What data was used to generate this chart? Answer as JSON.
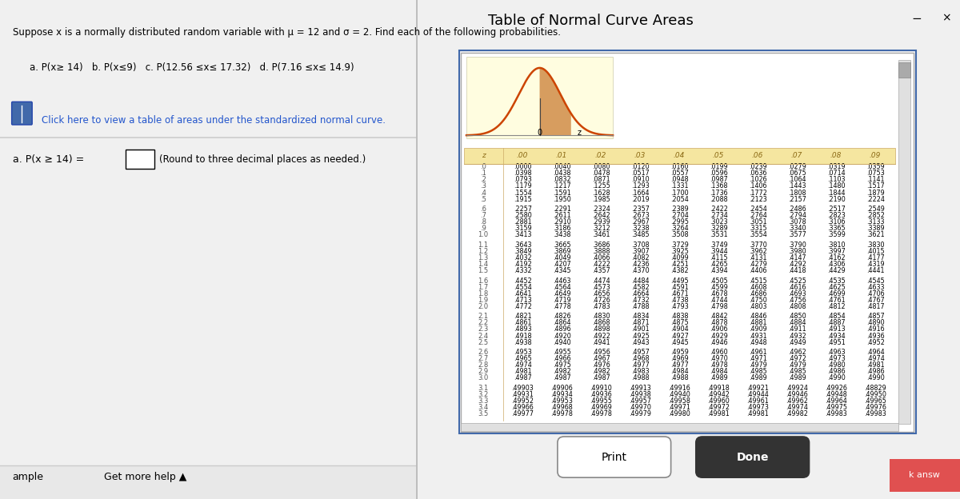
{
  "left_panel": {
    "title_line1": "Suppose x is a normally distributed random variable with μ = 12 and σ = 2. Find each of the following probabilities.",
    "sub_parts": "a. P(x≥ 14)   b. P(x≤9)   c. P(12.56 ≤x≤ 17.32)   d. P(7.16 ≤x≤ 14.9)",
    "click_text": "Click here to view a table of areas under the standardized normal curve.",
    "answer_label": "a. P(x ≥ 14) =",
    "answer_note": "(Round to three decimal places as needed.)",
    "bottom_left": "ample",
    "bottom_right": "Get more help ▲",
    "bg_color": "#ffffff",
    "divider_color": "#cccccc",
    "text_color": "#000000",
    "blue_text_color": "#2255cc",
    "answer_box_color": "#ffffff",
    "answer_box_border": "#000000"
  },
  "right_panel": {
    "title": "Table of Normal Curve Areas",
    "bg_color": "#f0f0f0",
    "panel_bg": "#ffffff",
    "title_color": "#000000",
    "header_bg": "#f5e6a0",
    "header_text_color": "#8b6914",
    "table_bg": "#ffffff",
    "row_text_color": "#000000",
    "close_color": "#000000",
    "curve_color": "#cc4400",
    "print_btn_bg": "#ffffff",
    "done_btn_bg": "#333333",
    "done_btn_text": "#ffffff",
    "print_btn_text": "#000000",
    "column_headers": [
      "z",
      ".00",
      ".01",
      ".02",
      ".03",
      ".04",
      ".05",
      ".06",
      ".07",
      ".08",
      ".09"
    ],
    "z_values": [
      ".0",
      ".1",
      ".2",
      ".3",
      ".4",
      ".5",
      ".6",
      ".7",
      ".8",
      ".9",
      "1.0",
      "1.1",
      "1.2",
      "1.3",
      "1.4",
      "1.5",
      "1.6",
      "1.7",
      "1.8",
      "1.9",
      "2.0",
      "2.1",
      "2.2",
      "2.3",
      "2.4",
      "2.5",
      "2.6",
      "2.7",
      "2.8",
      "2.9",
      "3.0",
      "3.1",
      "3.2",
      "3.3",
      "3.4",
      "3.5"
    ],
    "table_data": [
      [
        ".0000",
        ".0040",
        ".0080",
        ".0120",
        ".0160",
        ".0199",
        ".0239",
        ".0279",
        ".0319",
        ".0359"
      ],
      [
        ".0398",
        ".0438",
        ".0478",
        ".0517",
        ".0557",
        ".0596",
        ".0636",
        ".0675",
        ".0714",
        ".0753"
      ],
      [
        ".0793",
        ".0832",
        ".0871",
        ".0910",
        ".0948",
        ".0987",
        ".1026",
        ".1064",
        ".1103",
        ".1141"
      ],
      [
        ".1179",
        ".1217",
        ".1255",
        ".1293",
        ".1331",
        ".1368",
        ".1406",
        ".1443",
        ".1480",
        ".1517"
      ],
      [
        ".1554",
        ".1591",
        ".1628",
        ".1664",
        ".1700",
        ".1736",
        ".1772",
        ".1808",
        ".1844",
        ".1879"
      ],
      [
        ".1915",
        ".1950",
        ".1985",
        ".2019",
        ".2054",
        ".2088",
        ".2123",
        ".2157",
        ".2190",
        ".2224"
      ],
      [
        ".2257",
        ".2291",
        ".2324",
        ".2357",
        ".2389",
        ".2422",
        ".2454",
        ".2486",
        ".2517",
        ".2549"
      ],
      [
        ".2580",
        ".2611",
        ".2642",
        ".2673",
        ".2704",
        ".2734",
        ".2764",
        ".2794",
        ".2823",
        ".2852"
      ],
      [
        ".2881",
        ".2910",
        ".2939",
        ".2967",
        ".2995",
        ".3023",
        ".3051",
        ".3078",
        ".3106",
        ".3133"
      ],
      [
        ".3159",
        ".3186",
        ".3212",
        ".3238",
        ".3264",
        ".3289",
        ".3315",
        ".3340",
        ".3365",
        ".3389"
      ],
      [
        ".3413",
        ".3438",
        ".3461",
        ".3485",
        ".3508",
        ".3531",
        ".3554",
        ".3577",
        ".3599",
        ".3621"
      ],
      [
        ".3643",
        ".3665",
        ".3686",
        ".3708",
        ".3729",
        ".3749",
        ".3770",
        ".3790",
        ".3810",
        ".3830"
      ],
      [
        ".3849",
        ".3869",
        ".3888",
        ".3907",
        ".3925",
        ".3944",
        ".3962",
        ".3980",
        ".3997",
        ".4015"
      ],
      [
        ".4032",
        ".4049",
        ".4066",
        ".4082",
        ".4099",
        ".4115",
        ".4131",
        ".4147",
        ".4162",
        ".4177"
      ],
      [
        ".4192",
        ".4207",
        ".4222",
        ".4236",
        ".4251",
        ".4265",
        ".4279",
        ".4292",
        ".4306",
        ".4319"
      ],
      [
        ".4332",
        ".4345",
        ".4357",
        ".4370",
        ".4382",
        ".4394",
        ".4406",
        ".4418",
        ".4429",
        ".4441"
      ],
      [
        ".4452",
        ".4463",
        ".4474",
        ".4484",
        ".4495",
        ".4505",
        ".4515",
        ".4525",
        ".4535",
        ".4545"
      ],
      [
        ".4554",
        ".4564",
        ".4573",
        ".4582",
        ".4591",
        ".4599",
        ".4608",
        ".4616",
        ".4625",
        ".4633"
      ],
      [
        ".4641",
        ".4649",
        ".4656",
        ".4664",
        ".4671",
        ".4678",
        ".4686",
        ".4693",
        ".4699",
        ".4706"
      ],
      [
        ".4713",
        ".4719",
        ".4726",
        ".4732",
        ".4738",
        ".4744",
        ".4750",
        ".4756",
        ".4761",
        ".4767"
      ],
      [
        ".4772",
        ".4778",
        ".4783",
        ".4788",
        ".4793",
        ".4798",
        ".4803",
        ".4808",
        ".4812",
        ".4817"
      ],
      [
        ".4821",
        ".4826",
        ".4830",
        ".4834",
        ".4838",
        ".4842",
        ".4846",
        ".4850",
        ".4854",
        ".4857"
      ],
      [
        ".4861",
        ".4864",
        ".4868",
        ".4871",
        ".4875",
        ".4878",
        ".4881",
        ".4884",
        ".4887",
        ".4890"
      ],
      [
        ".4893",
        ".4896",
        ".4898",
        ".4901",
        ".4904",
        ".4906",
        ".4909",
        ".4911",
        ".4913",
        ".4916"
      ],
      [
        ".4918",
        ".4920",
        ".4922",
        ".4925",
        ".4927",
        ".4929",
        ".4931",
        ".4932",
        ".4934",
        ".4936"
      ],
      [
        ".4938",
        ".4940",
        ".4941",
        ".4943",
        ".4945",
        ".4946",
        ".4948",
        ".4949",
        ".4951",
        ".4952"
      ],
      [
        ".4953",
        ".4955",
        ".4956",
        ".4957",
        ".4959",
        ".4960",
        ".4961",
        ".4962",
        ".4963",
        ".4964"
      ],
      [
        ".4965",
        ".4966",
        ".4967",
        ".4968",
        ".4969",
        ".4970",
        ".4971",
        ".4972",
        ".4973",
        ".4974"
      ],
      [
        ".4974",
        ".4975",
        ".4976",
        ".4977",
        ".4977",
        ".4978",
        ".4979",
        ".4979",
        ".4980",
        ".4981"
      ],
      [
        ".4981",
        ".4982",
        ".4982",
        ".4983",
        ".4984",
        ".4984",
        ".4985",
        ".4985",
        ".4986",
        ".4986"
      ],
      [
        ".4987",
        ".4987",
        ".4987",
        ".4988",
        ".4988",
        ".4989",
        ".4989",
        ".4989",
        ".4990",
        ".4990"
      ],
      [
        ".49903",
        ".49906",
        ".49910",
        ".49913",
        ".49916",
        ".49918",
        ".49921",
        ".49924",
        ".49926",
        ".48829"
      ],
      [
        ".49931",
        ".49934",
        ".49936",
        ".49938",
        ".49940",
        ".49942",
        ".49944",
        ".49946",
        ".49948",
        ".49950"
      ],
      [
        ".49952",
        ".49953",
        ".49955",
        ".49957",
        ".49958",
        ".49960",
        ".49961",
        ".49962",
        ".49964",
        ".49965"
      ],
      [
        ".49966",
        ".49968",
        ".49969",
        ".49970",
        ".49971",
        ".49972",
        ".49973",
        ".49974",
        ".49975",
        ".49976"
      ],
      [
        ".49977",
        ".49978",
        ".49978",
        ".49979",
        ".49980",
        ".49981",
        ".49981",
        ".49982",
        ".49983",
        ".49983"
      ]
    ],
    "group_sizes": [
      6,
      5,
      5,
      5,
      5,
      5,
      5,
      6
    ]
  }
}
